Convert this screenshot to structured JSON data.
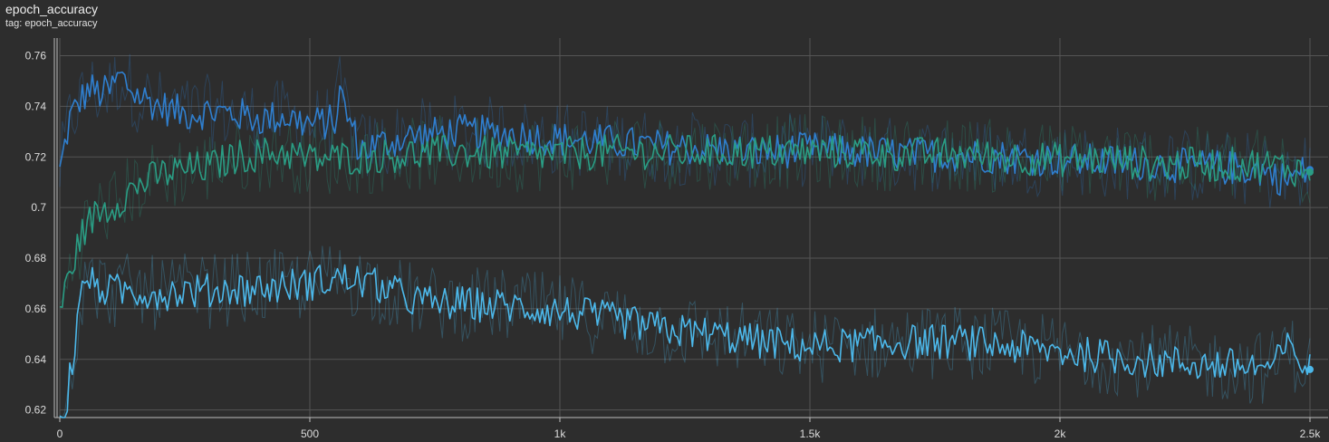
{
  "header": {
    "title": "epoch_accuracy",
    "subtitle": "tag: epoch_accuracy"
  },
  "colors": {
    "background": "#2d2d2d",
    "grid": "#555555",
    "axis": "#bdbdbd",
    "series": [
      "#2f7fcf",
      "#2a9d84",
      "#4cb8ea"
    ]
  },
  "chart_data": {
    "type": "line",
    "title": "epoch_accuracy",
    "xlabel": "",
    "ylabel": "",
    "xlim": [
      0,
      2500
    ],
    "ylim": [
      0.617,
      0.767
    ],
    "grid": true,
    "x_ticks": [
      0,
      500,
      1000,
      1500,
      2000,
      2500
    ],
    "x_tick_labels": [
      "0",
      "500",
      "1k",
      "1.5k",
      "2k",
      "2.5k"
    ],
    "y_ticks": [
      0.62,
      0.64,
      0.66,
      0.68,
      0.7,
      0.72,
      0.74,
      0.76
    ],
    "y_tick_labels": [
      "0.62",
      "0.64",
      "0.66",
      "0.68",
      "0.7",
      "0.72",
      "0.74",
      "0.76"
    ],
    "series": [
      {
        "x": [
          0,
          20,
          40,
          60,
          80,
          100,
          120,
          150,
          200,
          250,
          300,
          350,
          400,
          450,
          500,
          550,
          560,
          600,
          700,
          800,
          900,
          1000,
          1100,
          1200,
          1300,
          1400,
          1500,
          1600,
          1700,
          1800,
          1900,
          2000,
          2100,
          2200,
          2300,
          2400,
          2450,
          2500
        ],
        "y": [
          0.714,
          0.735,
          0.742,
          0.747,
          0.745,
          0.746,
          0.752,
          0.745,
          0.74,
          0.737,
          0.738,
          0.737,
          0.735,
          0.736,
          0.733,
          0.734,
          0.745,
          0.723,
          0.728,
          0.73,
          0.729,
          0.727,
          0.726,
          0.724,
          0.723,
          0.722,
          0.723,
          0.722,
          0.721,
          0.721,
          0.72,
          0.719,
          0.718,
          0.717,
          0.716,
          0.715,
          0.711,
          0.715
        ]
      },
      {
        "x": [
          0,
          10,
          30,
          50,
          80,
          100,
          150,
          200,
          250,
          300,
          350,
          400,
          450,
          500,
          600,
          700,
          800,
          900,
          1000,
          1100,
          1200,
          1300,
          1400,
          1500,
          1600,
          1700,
          1800,
          1900,
          2000,
          2100,
          2200,
          2300,
          2400,
          2450,
          2500
        ],
        "y": [
          0.66,
          0.666,
          0.681,
          0.692,
          0.699,
          0.7,
          0.708,
          0.713,
          0.715,
          0.716,
          0.72,
          0.721,
          0.722,
          0.719,
          0.72,
          0.721,
          0.722,
          0.721,
          0.721,
          0.722,
          0.722,
          0.722,
          0.722,
          0.722,
          0.722,
          0.721,
          0.721,
          0.72,
          0.719,
          0.719,
          0.717,
          0.717,
          0.717,
          0.716,
          0.714
        ]
      },
      {
        "x": [
          0,
          10,
          20,
          30,
          40,
          50,
          60,
          80,
          100,
          150,
          200,
          250,
          300,
          350,
          400,
          450,
          500,
          550,
          600,
          650,
          700,
          750,
          800,
          900,
          1000,
          1100,
          1200,
          1300,
          1400,
          1500,
          1600,
          1700,
          1800,
          1900,
          2000,
          2100,
          2200,
          2300,
          2400,
          2430,
          2450,
          2500
        ],
        "y": [
          0.612,
          0.616,
          0.634,
          0.645,
          0.66,
          0.675,
          0.67,
          0.668,
          0.667,
          0.667,
          0.666,
          0.667,
          0.667,
          0.668,
          0.668,
          0.669,
          0.67,
          0.672,
          0.671,
          0.668,
          0.664,
          0.662,
          0.662,
          0.661,
          0.659,
          0.656,
          0.652,
          0.65,
          0.647,
          0.645,
          0.646,
          0.647,
          0.647,
          0.645,
          0.643,
          0.641,
          0.639,
          0.638,
          0.637,
          0.637,
          0.645,
          0.636
        ]
      }
    ]
  }
}
